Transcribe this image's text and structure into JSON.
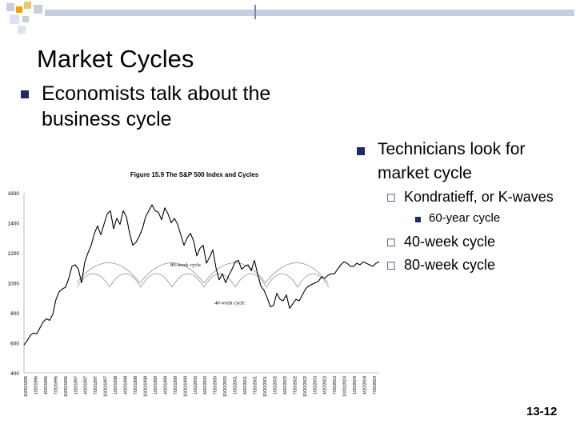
{
  "slide": {
    "title": "Market Cycles",
    "left_bullet": "Economists talk about the business cycle",
    "right_bullet": "Technicians look for market cycle",
    "sub_items": [
      {
        "text": "Kondratieff, or K-waves",
        "subitems": [
          "60-year cycle"
        ]
      },
      {
        "text": "40-week cycle"
      },
      {
        "text": "80-week cycle"
      }
    ],
    "page_number": "13-12"
  },
  "colors": {
    "accent": "#1f2b68",
    "deco_light": "#c9cde0",
    "deco_orange": "#f0a000"
  },
  "chart_data": {
    "type": "line",
    "title": "Figure 15.9 The S&P 500 Index and Cycles",
    "ylim": [
      400,
      1600
    ],
    "yticks": [
      400,
      600,
      800,
      1000,
      1200,
      1400,
      1600
    ],
    "xlabels": [
      "10/20/1995",
      "1/20/1996",
      "4/20/1996",
      "7/20/1996",
      "10/20/1996",
      "1/20/1997",
      "4/20/1997",
      "7/20/1997",
      "10/20/1997",
      "1/20/1998",
      "4/20/1998",
      "7/20/1998",
      "10/20/1998",
      "1/20/1999",
      "4/20/1999",
      "7/20/1999",
      "10/20/1999",
      "1/20/2000",
      "4/20/2000",
      "7/20/2000",
      "10/20/2000",
      "1/20/2001",
      "4/20/2001",
      "7/20/2001",
      "10/20/2001",
      "1/20/2002",
      "4/20/2002",
      "7/20/2002",
      "10/20/2002",
      "1/20/2003",
      "4/20/2003",
      "7/20/2003",
      "10/20/2003",
      "1/20/2004",
      "4/20/2004",
      "7/20/2004"
    ],
    "series": [
      {
        "values": [
          585,
          615,
          650,
          665,
          660,
          700,
          740,
          760,
          750,
          790,
          890,
          940,
          960,
          970,
          1030,
          1110,
          1120,
          1090,
          1000,
          1140,
          1200,
          1250,
          1330,
          1380,
          1320,
          1390,
          1460,
          1480,
          1360,
          1430,
          1390,
          1480,
          1440,
          1330,
          1250,
          1270,
          1310,
          1360,
          1440,
          1480,
          1520,
          1480,
          1470,
          1420,
          1500,
          1460,
          1400,
          1430,
          1390,
          1320,
          1250,
          1300,
          1330,
          1280,
          1180,
          1230,
          1250,
          1130,
          1170,
          1220,
          1100,
          1020,
          1060,
          1000,
          1050,
          1090,
          1140,
          1150,
          1090,
          1110,
          1120,
          1080,
          1150,
          1060,
          980,
          950,
          900,
          840,
          850,
          930,
          890,
          880,
          920,
          830,
          860,
          890,
          880,
          920,
          960,
          980,
          990,
          1000,
          1010,
          1040,
          1030,
          1050,
          1060,
          1060,
          1090,
          1120,
          1140,
          1130,
          1110,
          1110,
          1130,
          1120,
          1140,
          1130,
          1120,
          1110,
          1130,
          1140
        ]
      }
    ],
    "annotations": [
      "80-week cycle",
      "40-week cycle"
    ]
  }
}
